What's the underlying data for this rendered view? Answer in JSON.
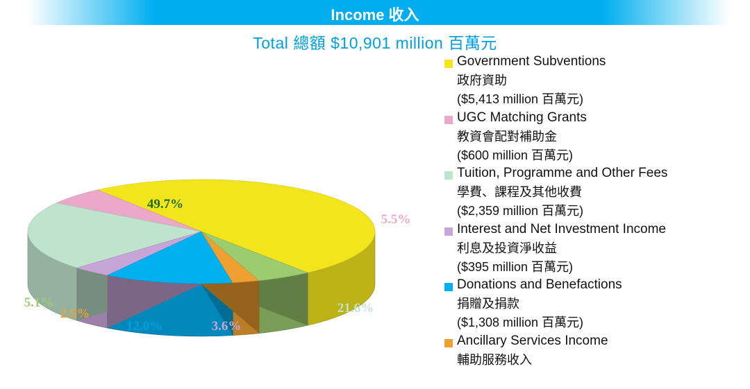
{
  "header": {
    "title": "Income 收入",
    "subtitle": "Total  總額  $10,901 million  百萬元"
  },
  "chart_data": {
    "type": "pie",
    "title": "Income 收入",
    "subtitle": "Total 總額 $10,901 million 百萬元",
    "legend_position": "right",
    "slices": [
      {
        "name_en": "Government Subventions",
        "name_zh": "政府資助",
        "amount": "($5,413 million 百萬元)",
        "value": 5413,
        "percent": 49.7,
        "label": "49.7%",
        "color": "#f2e51c",
        "label_color": "#1f6b1f"
      },
      {
        "name_en": "UGC Matching Grants",
        "name_zh": "教資會配對補助金",
        "amount": "($600 million 百萬元)",
        "value": 600,
        "percent": 5.5,
        "label": "5.5%",
        "color": "#eba8c8",
        "label_color": "#eba8c8"
      },
      {
        "name_en": "Tuition, Programme and Other Fees",
        "name_zh": "學費、課程及其他收費",
        "amount": "($2,359 million 百萬元)",
        "value": 2359,
        "percent": 21.6,
        "label": "21.6%",
        "color": "#bfe4cd",
        "label_color": "#bfe4cd"
      },
      {
        "name_en": "Interest and Net Investment Income",
        "name_zh": "利息及投資淨收益",
        "amount": "($395 million 百萬元)",
        "value": 395,
        "percent": 3.6,
        "label": "3.6%",
        "color": "#c7a5d6",
        "label_color": "#c7a5d6"
      },
      {
        "name_en": "Donations and Benefactions",
        "name_zh": "捐贈及捐款",
        "amount": "($1,308 million 百萬元)",
        "value": 1308,
        "percent": 12.0,
        "label": "12.0%",
        "color": "#00b0ef",
        "label_color": "#00a0e0"
      },
      {
        "name_en": "Ancillary Services Income",
        "name_zh": "輔助服務收入",
        "amount": "",
        "value": 272,
        "percent": 2.5,
        "label": "2.5%",
        "color": "#f0a030",
        "label_color": "#f0a030"
      },
      {
        "name_en": "",
        "name_zh": "",
        "amount": "",
        "value": 554,
        "percent": 5.1,
        "label": "5.1%",
        "color": "#9ccb70",
        "label_color": "#9ccb70"
      }
    ]
  }
}
